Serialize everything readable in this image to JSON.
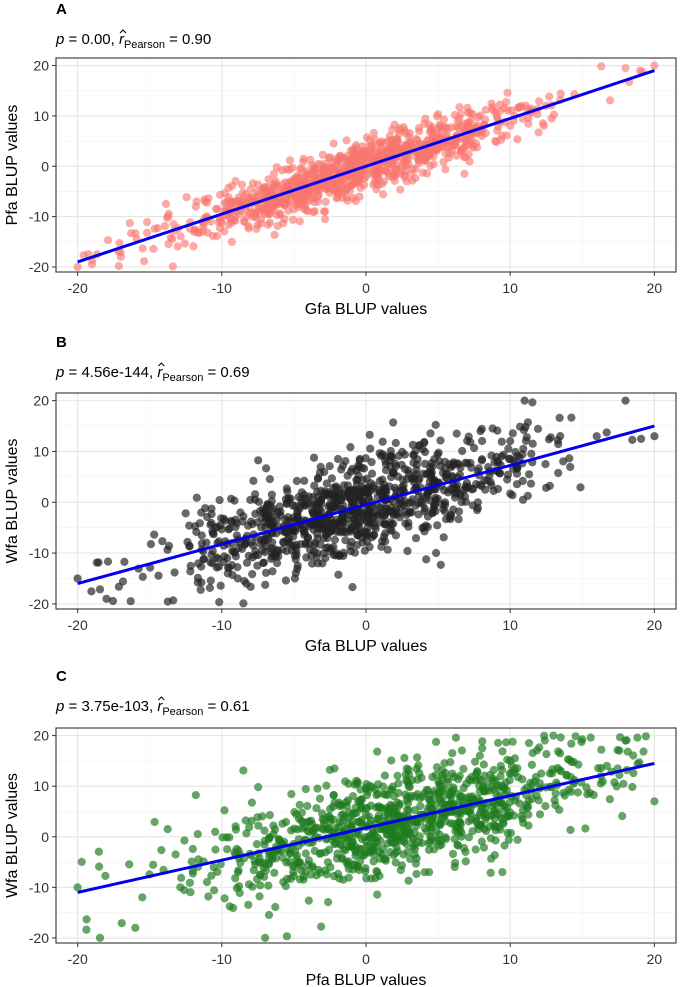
{
  "chart_data": [
    {
      "type": "scatter",
      "panel": "A",
      "subtitle": {
        "p_label": "p",
        "p_value": "= 0.00,",
        "r_label": "r",
        "r_sub": "Pearson",
        "r_value": "= 0.90"
      },
      "xlabel": "Gfa BLUP values",
      "ylabel": "Pfa BLUP values",
      "xlim": [
        -21.5,
        21.5
      ],
      "ylim": [
        -21,
        21.5
      ],
      "xticks": [
        -20,
        -10,
        0,
        10,
        20
      ],
      "yticks": [
        -20,
        -10,
        0,
        10,
        20
      ],
      "point_color": "#f8766d",
      "n_points": 1000,
      "fit_line": {
        "x": [
          -20,
          20
        ],
        "y": [
          -19,
          19
        ],
        "color": "#0000ee"
      },
      "sample_points": [
        [
          -20,
          -20
        ],
        [
          -19,
          -19.5
        ],
        [
          -17,
          -18
        ],
        [
          20,
          20
        ],
        [
          19,
          19
        ],
        [
          18,
          19.5
        ]
      ],
      "grid": true
    },
    {
      "type": "scatter",
      "panel": "B",
      "subtitle": {
        "p_label": "p",
        "p_value": "= 4.56e-144,",
        "r_label": "r",
        "r_sub": "Pearson",
        "r_value": "= 0.69"
      },
      "xlabel": "Gfa BLUP values",
      "ylabel": "Wfa BLUP values",
      "xlim": [
        -21.5,
        21.5
      ],
      "ylim": [
        -21,
        21.5
      ],
      "xticks": [
        -20,
        -10,
        0,
        10,
        20
      ],
      "yticks": [
        -20,
        -10,
        0,
        10,
        20
      ],
      "point_color": "#222222",
      "n_points": 1000,
      "fit_line": {
        "x": [
          -20,
          20
        ],
        "y": [
          -16,
          15
        ],
        "color": "#0000ee"
      },
      "sample_points": [
        [
          -20,
          -15
        ],
        [
          -18,
          -19
        ],
        [
          18,
          20
        ],
        [
          20,
          13
        ],
        [
          11,
          20
        ],
        [
          16,
          13
        ]
      ],
      "grid": true
    },
    {
      "type": "scatter",
      "panel": "C",
      "subtitle": {
        "p_label": "p",
        "p_value": "= 3.75e-103,",
        "r_label": "r",
        "r_sub": "Pearson",
        "r_value": "= 0.61"
      },
      "xlabel": "Pfa BLUP values",
      "ylabel": "Wfa BLUP values",
      "xlim": [
        -21.5,
        21.5
      ],
      "ylim": [
        -21,
        21.5
      ],
      "xticks": [
        -20,
        -10,
        0,
        10,
        20
      ],
      "yticks": [
        -20,
        -10,
        0,
        10,
        20
      ],
      "point_color": "#1e7b1e",
      "n_points": 1000,
      "fit_line": {
        "x": [
          -20,
          20
        ],
        "y": [
          -11,
          14.5
        ],
        "color": "#0000ee"
      },
      "sample_points": [
        [
          -20,
          -10
        ],
        [
          -7,
          -20
        ],
        [
          20,
          7
        ],
        [
          18,
          19
        ],
        [
          13,
          20
        ],
        [
          -16,
          -18
        ]
      ],
      "grid": true
    }
  ]
}
